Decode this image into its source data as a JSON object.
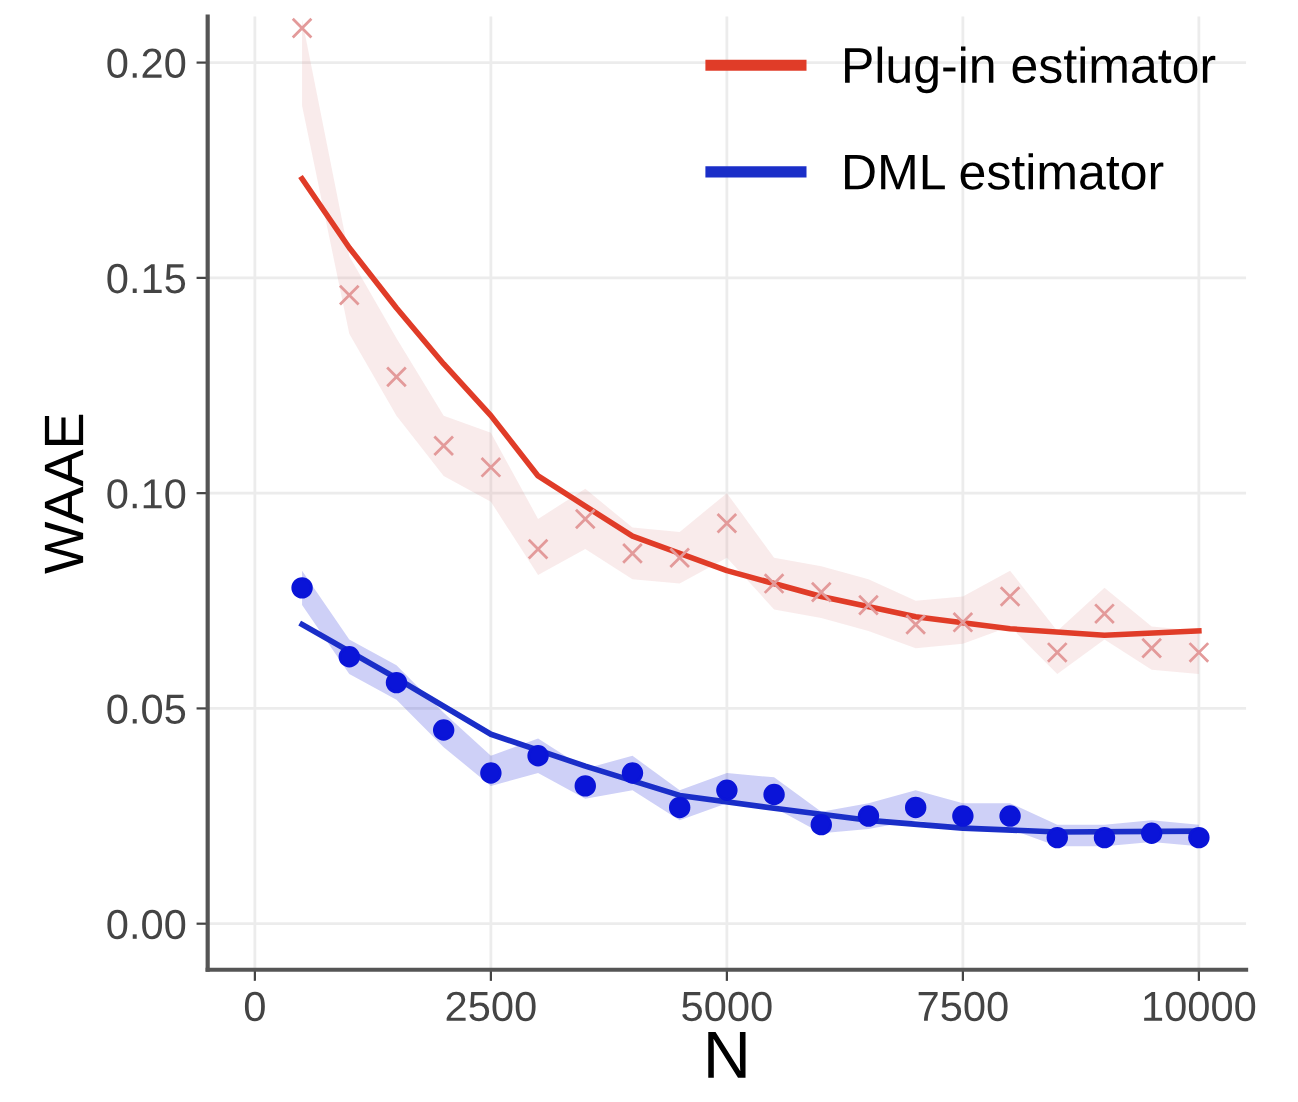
{
  "chart_data": {
    "type": "line",
    "xlabel": "N",
    "ylabel": "WAAE",
    "xlim": [
      -500,
      10500
    ],
    "xticks": [
      0,
      2500,
      5000,
      7500,
      10000
    ],
    "ylim": [
      -0.0107,
      0.2107
    ],
    "yticks": [
      {
        "value": 0,
        "label": "0.00"
      },
      {
        "value": 0.05,
        "label": "0.05"
      },
      {
        "value": 0.1,
        "label": "0.10"
      },
      {
        "value": 0.15,
        "label": "0.15"
      },
      {
        "value": 0.2,
        "label": "0.20"
      }
    ],
    "grid": true,
    "legend": "top right",
    "series": [
      {
        "type": "scatter",
        "marker": "cross",
        "color": "#e39a9a",
        "x": [
          500,
          1000,
          1500,
          2000,
          2500,
          3000,
          3500,
          4000,
          4500,
          5000,
          5500,
          6000,
          6500,
          7000,
          7500,
          8000,
          8500,
          9000,
          9500,
          10000
        ],
        "values": [
          0.208,
          0.146,
          0.127,
          0.111,
          0.106,
          0.087,
          0.094,
          0.086,
          0.085,
          0.093,
          0.079,
          0.077,
          0.074,
          0.0695,
          0.07,
          0.076,
          0.063,
          0.072,
          0.064,
          0.063
        ],
        "lower": [
          0.19,
          0.137,
          0.118,
          0.104,
          0.098,
          0.081,
          0.087,
          0.08,
          0.079,
          0.085,
          0.073,
          0.071,
          0.068,
          0.064,
          0.065,
          0.069,
          0.058,
          0.066,
          0.059,
          0.058
        ],
        "upper": [
          0.21,
          0.155,
          0.136,
          0.118,
          0.114,
          0.094,
          0.101,
          0.092,
          0.091,
          0.1,
          0.085,
          0.083,
          0.08,
          0.075,
          0.076,
          0.082,
          0.068,
          0.078,
          0.069,
          0.068
        ]
      },
      {
        "type": "scatter",
        "marker": "circle",
        "color": "#0a14d8",
        "x": [
          500,
          1000,
          1500,
          2000,
          2500,
          3000,
          3500,
          4000,
          4500,
          5000,
          5500,
          6000,
          6500,
          7000,
          7500,
          8000,
          8500,
          9000,
          9500,
          10000
        ],
        "values": [
          0.078,
          0.062,
          0.056,
          0.045,
          0.035,
          0.039,
          0.032,
          0.035,
          0.027,
          0.031,
          0.03,
          0.023,
          0.025,
          0.027,
          0.025,
          0.025,
          0.02,
          0.02,
          0.021,
          0.02
        ],
        "lower": [
          0.074,
          0.058,
          0.052,
          0.041,
          0.032,
          0.035,
          0.029,
          0.031,
          0.024,
          0.028,
          0.027,
          0.021,
          0.022,
          0.024,
          0.022,
          0.022,
          0.018,
          0.018,
          0.019,
          0.018
        ],
        "upper": [
          0.082,
          0.066,
          0.06,
          0.049,
          0.039,
          0.043,
          0.036,
          0.039,
          0.031,
          0.035,
          0.034,
          0.026,
          0.028,
          0.031,
          0.028,
          0.028,
          0.023,
          0.023,
          0.024,
          0.023
        ]
      },
      {
        "name": "Plug-in estimator",
        "color": "#e03c28",
        "x": [
          500,
          1000,
          1500,
          2000,
          2500,
          3000,
          3500,
          4000,
          5000,
          6000,
          7000,
          8000,
          9000,
          10000
        ],
        "values": [
          0.173,
          0.157,
          0.143,
          0.13,
          0.118,
          0.104,
          0.097,
          0.09,
          0.082,
          0.076,
          0.0713,
          0.0685,
          0.067,
          0.068
        ]
      },
      {
        "name": "DML estimator",
        "color": "#1a2ec8",
        "x": [
          500,
          1500,
          2500,
          3500,
          4500,
          5500,
          6500,
          7500,
          8500,
          10000
        ],
        "values": [
          0.0695,
          0.057,
          0.044,
          0.0366,
          0.0298,
          0.0268,
          0.024,
          0.0222,
          0.0213,
          0.0215
        ]
      }
    ]
  }
}
